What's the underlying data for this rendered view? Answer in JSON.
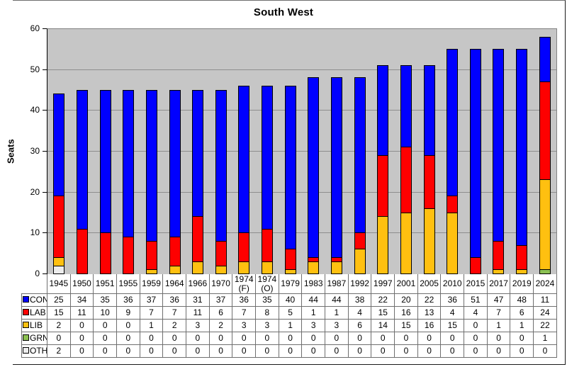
{
  "chart_data": {
    "type": "bar",
    "stacked": true,
    "title": "South West",
    "ylabel": "Seats",
    "ylim": [
      0,
      60
    ],
    "yticks": [
      0,
      10,
      20,
      30,
      40,
      50,
      60
    ],
    "grid": true,
    "legend_position": "table-left",
    "plot_bg": "#c6c6c6",
    "categories": [
      "1945",
      "1950",
      "1951",
      "1955",
      "1959",
      "1964",
      "1966",
      "1970",
      "1974 (F)",
      "1974 (O)",
      "1979",
      "1983",
      "1987",
      "1992",
      "1997",
      "2001",
      "2005",
      "2010",
      "2015",
      "2017",
      "2019",
      "2024"
    ],
    "series": [
      {
        "name": "CON",
        "color": "#0000ff",
        "values": [
          25,
          34,
          35,
          36,
          37,
          36,
          31,
          37,
          36,
          35,
          40,
          44,
          44,
          38,
          22,
          20,
          22,
          36,
          51,
          47,
          48,
          11
        ]
      },
      {
        "name": "LAB",
        "color": "#fe0000",
        "values": [
          15,
          11,
          10,
          9,
          7,
          7,
          11,
          6,
          7,
          8,
          5,
          1,
          1,
          4,
          15,
          16,
          13,
          4,
          4,
          7,
          6,
          24
        ]
      },
      {
        "name": "LIB",
        "color": "#ffc010",
        "values": [
          2,
          0,
          0,
          0,
          1,
          2,
          3,
          2,
          3,
          3,
          1,
          3,
          3,
          6,
          14,
          15,
          16,
          15,
          0,
          1,
          1,
          22
        ]
      },
      {
        "name": "GRN",
        "color": "#8cc152",
        "values": [
          0,
          0,
          0,
          0,
          0,
          0,
          0,
          0,
          0,
          0,
          0,
          0,
          0,
          0,
          0,
          0,
          0,
          0,
          0,
          0,
          0,
          1
        ]
      },
      {
        "name": "OTH",
        "color": "#ededed",
        "values": [
          2,
          0,
          0,
          0,
          0,
          0,
          0,
          0,
          0,
          0,
          0,
          0,
          0,
          0,
          0,
          0,
          0,
          0,
          0,
          0,
          0,
          0
        ]
      }
    ],
    "stack_order_bottom_to_top": [
      "OTH",
      "GRN",
      "LIB",
      "LAB",
      "CON"
    ]
  }
}
